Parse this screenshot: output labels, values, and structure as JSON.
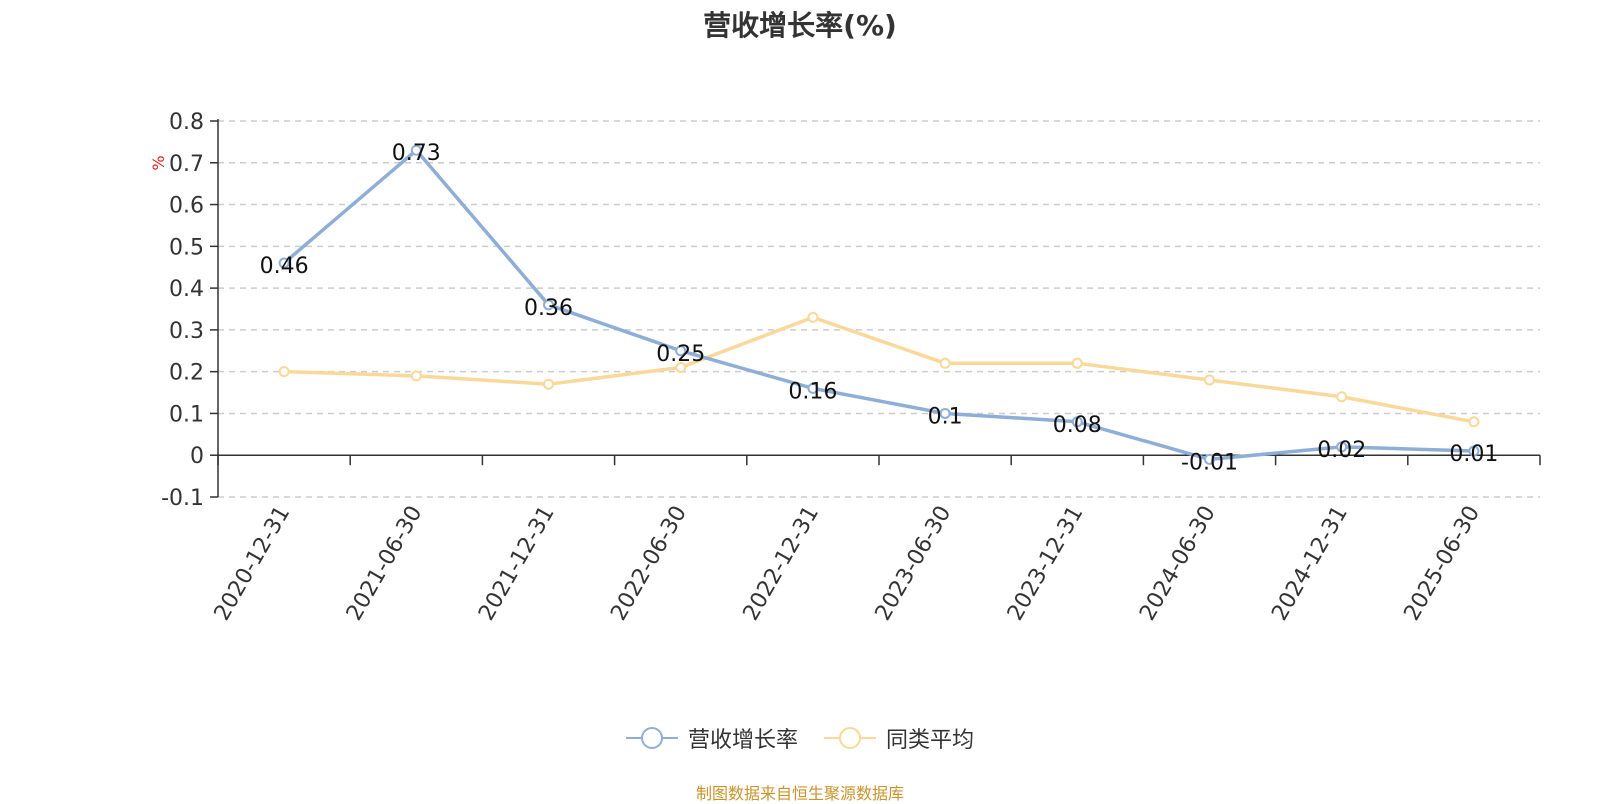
{
  "chart_data": {
    "type": "line",
    "title": "营收增长率(%)",
    "ylabel": "%",
    "ylim": [
      -0.1,
      0.8
    ],
    "yticks": [
      "0.8",
      "0.7",
      "0.6",
      "0.5",
      "0.4",
      "0.3",
      "0.2",
      "0.1",
      "0",
      "-0.1"
    ],
    "ytick_values": [
      0.8,
      0.7,
      0.6,
      0.5,
      0.4,
      0.3,
      0.2,
      0.1,
      0,
      -0.1
    ],
    "categories": [
      "2020-12-31",
      "2021-06-30",
      "2021-12-31",
      "2022-06-30",
      "2022-12-31",
      "2023-06-30",
      "2023-12-31",
      "2024-06-30",
      "2024-12-31",
      "2025-06-30"
    ],
    "series": [
      {
        "name": "营收增长率",
        "color": "#8eaed8",
        "values": [
          0.46,
          0.73,
          0.36,
          0.25,
          0.16,
          0.1,
          0.08,
          -0.01,
          0.02,
          0.01
        ],
        "labels": [
          "0.46",
          "0.73",
          "0.36",
          "0.25",
          "0.16",
          "0.1",
          "0.08",
          "-0.01",
          "0.02",
          "0.01"
        ]
      },
      {
        "name": "同类平均",
        "color": "#f9d89a",
        "values": [
          0.2,
          0.19,
          0.17,
          0.21,
          0.33,
          0.22,
          0.22,
          0.18,
          0.14,
          0.08
        ]
      }
    ],
    "grid": true,
    "legend_position": "bottom"
  },
  "footer": {
    "source": "制图数据来自恒生聚源数据库"
  }
}
